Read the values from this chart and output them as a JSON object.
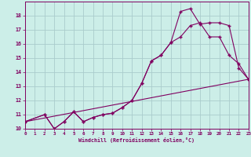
{
  "xlabel": "Windchill (Refroidissement éolien,°C)",
  "bg_color": "#cceee8",
  "grid_color": "#aacccc",
  "line_color": "#800060",
  "xmin": 0,
  "xmax": 23,
  "ymin": 10,
  "ymax": 19,
  "yticks": [
    10,
    11,
    12,
    13,
    14,
    15,
    16,
    17,
    18
  ],
  "xticks": [
    0,
    1,
    2,
    3,
    4,
    5,
    6,
    7,
    8,
    9,
    10,
    11,
    12,
    13,
    14,
    15,
    16,
    17,
    18,
    19,
    20,
    21,
    22,
    23
  ],
  "line1_x": [
    0,
    2,
    3,
    4,
    5,
    6,
    7,
    8,
    9,
    10,
    11,
    12,
    13,
    14,
    15,
    16,
    17,
    18,
    19,
    20,
    21,
    22,
    23
  ],
  "line1_y": [
    10.5,
    11.0,
    10.0,
    10.5,
    11.2,
    10.5,
    10.8,
    11.0,
    11.1,
    11.5,
    12.0,
    13.2,
    14.8,
    15.2,
    16.1,
    18.3,
    18.5,
    17.4,
    17.5,
    17.5,
    17.3,
    14.3,
    13.5
  ],
  "line2_x": [
    0,
    2,
    3,
    4,
    5,
    6,
    7,
    8,
    9,
    10,
    11,
    12,
    13,
    14,
    15,
    16,
    17,
    18,
    19,
    20,
    21,
    22,
    23
  ],
  "line2_y": [
    10.5,
    11.0,
    10.0,
    10.5,
    11.2,
    10.5,
    10.8,
    11.0,
    11.1,
    11.5,
    12.0,
    13.2,
    14.8,
    15.2,
    16.1,
    16.5,
    17.3,
    17.5,
    16.5,
    16.5,
    15.2,
    14.6,
    13.5
  ],
  "line3_x": [
    0,
    23
  ],
  "line3_y": [
    10.5,
    13.5
  ]
}
